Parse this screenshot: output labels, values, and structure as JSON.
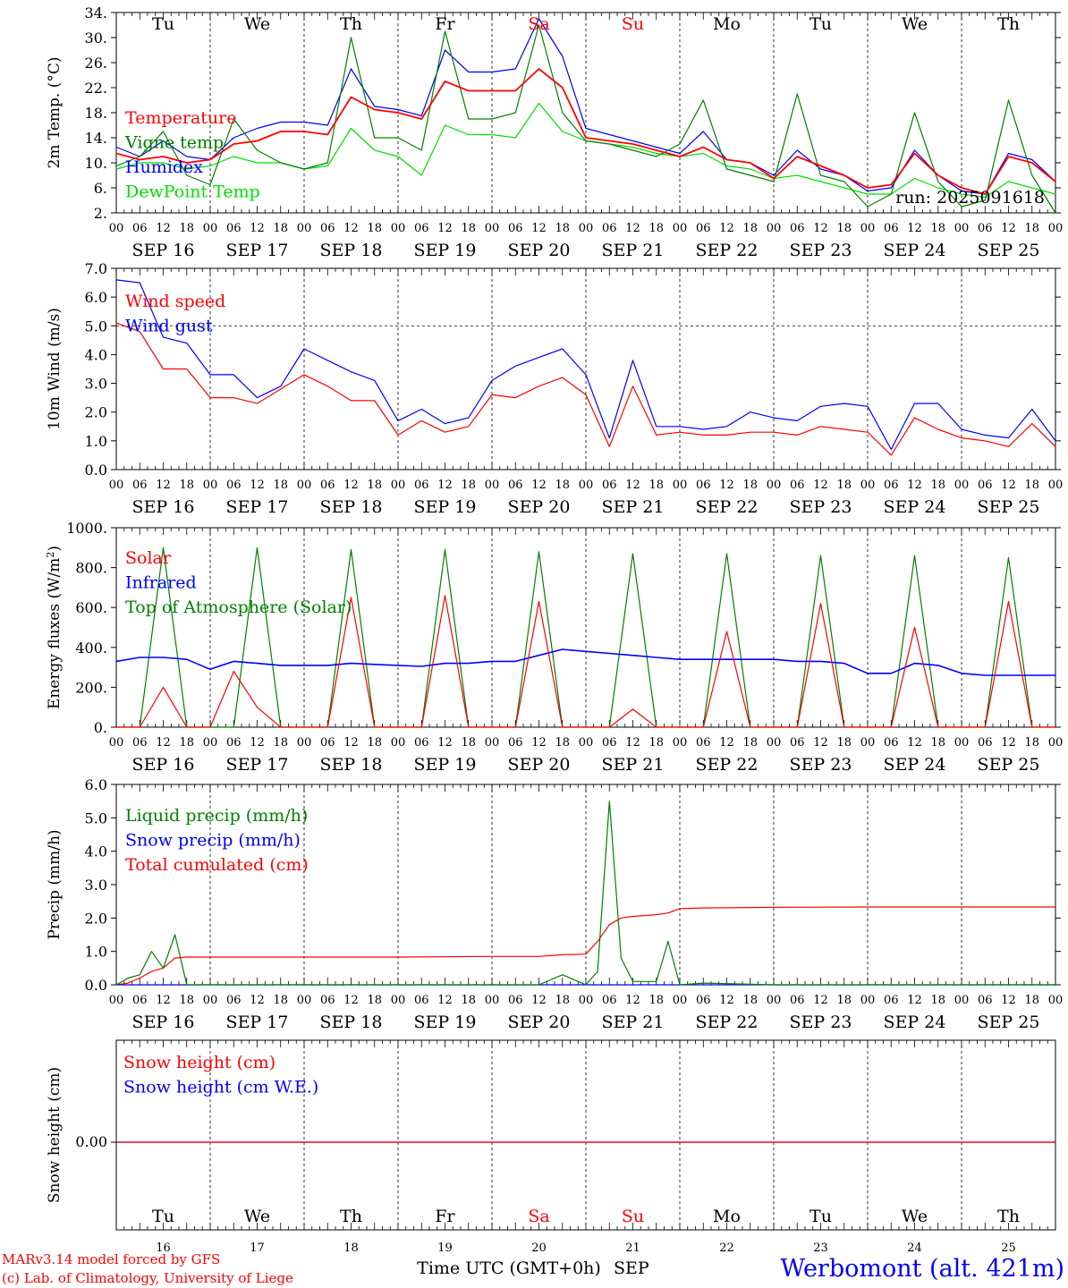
{
  "chart_data": [
    {
      "type": "line",
      "ylabel": "2m Temp. (°C)",
      "ylim": [
        2,
        34
      ],
      "yticks": [
        "2.",
        "6.",
        "10.",
        "14.",
        "18.",
        "22.",
        "26.",
        "30.",
        "34."
      ],
      "day_labels": [
        "Tu",
        "We",
        "Th",
        "Fr",
        "Sa",
        "Su",
        "Mo",
        "Tu",
        "We",
        "Th"
      ],
      "annotation": "run: 2025091618",
      "legend": [
        "Temperature",
        "Vigne temp",
        "Humidex",
        "DewPoint Temp"
      ],
      "x_hours": [
        0,
        6,
        12,
        18,
        24,
        30,
        36,
        42,
        48,
        54,
        60,
        66,
        72,
        78,
        84,
        90,
        96,
        102,
        108,
        114,
        120,
        126,
        132,
        138,
        144,
        150,
        156,
        162,
        168,
        174,
        180,
        186,
        192,
        198,
        204,
        210,
        216,
        222,
        228,
        234,
        240
      ],
      "series": [
        {
          "name": "Temperature",
          "color": "#ff0000",
          "values": [
            11.5,
            10.5,
            11,
            10,
            10.5,
            13,
            13.5,
            15,
            15,
            14.5,
            20.5,
            18.5,
            18,
            17,
            23,
            21.5,
            21.5,
            21.5,
            25,
            22,
            14,
            13.5,
            13,
            12,
            11,
            12.5,
            10.5,
            10,
            7.5,
            11,
            9.5,
            8,
            6,
            6.5,
            11.5,
            8,
            6,
            5,
            11,
            10,
            7
          ]
        },
        {
          "name": "Vigne temp",
          "color": "#008000",
          "values": [
            9.5,
            11,
            15,
            8,
            6.5,
            17,
            12,
            10,
            9,
            10,
            30,
            14,
            14,
            12,
            31,
            17,
            17,
            18,
            32,
            18,
            13.5,
            13,
            12,
            11,
            13,
            20,
            9,
            8,
            7,
            21,
            8,
            7,
            3,
            5,
            18,
            7,
            3,
            4,
            20,
            8,
            2
          ]
        },
        {
          "name": "Humidex",
          "color": "#0000ff",
          "values": [
            12.5,
            11,
            13.5,
            11,
            10.5,
            14,
            15.5,
            16.5,
            16.5,
            16,
            25,
            19,
            18.5,
            17.5,
            28,
            24.5,
            24.5,
            25,
            33,
            27,
            15.5,
            14.5,
            13.5,
            12.5,
            11.5,
            15,
            10.5,
            10,
            8,
            12,
            9,
            8,
            5.5,
            6,
            12,
            8,
            5.5,
            5,
            11.5,
            10.5,
            7
          ]
        },
        {
          "name": "DewPoint Temp",
          "color": "#00e000",
          "values": [
            9,
            10,
            10,
            9,
            9.5,
            11,
            10,
            10,
            9,
            9.5,
            15.5,
            12,
            11,
            8,
            16,
            14.5,
            14.5,
            14,
            19.5,
            15,
            13.5,
            13,
            12.5,
            11.5,
            11,
            11.5,
            9.5,
            9,
            7.5,
            8,
            7,
            6,
            5,
            5,
            7.5,
            6,
            5,
            4.5,
            7,
            6,
            5
          ]
        }
      ]
    },
    {
      "type": "line",
      "ylabel": "10m Wind (m/s)",
      "ylim": [
        0,
        7
      ],
      "yticks": [
        "0.0",
        "1.0",
        "2.0",
        "3.0",
        "4.0",
        "5.0",
        "6.0",
        "7.0"
      ],
      "legend": [
        "Wind speed",
        "Wind gust"
      ],
      "x_hours": [
        0,
        6,
        12,
        18,
        24,
        30,
        36,
        42,
        48,
        54,
        60,
        66,
        72,
        78,
        84,
        90,
        96,
        102,
        108,
        114,
        120,
        126,
        132,
        138,
        144,
        150,
        156,
        162,
        168,
        174,
        180,
        186,
        192,
        198,
        204,
        210,
        216,
        222,
        228,
        234,
        240
      ],
      "series": [
        {
          "name": "Wind speed",
          "color": "#ff0000",
          "values": [
            5.1,
            4.8,
            3.5,
            3.5,
            2.5,
            2.5,
            2.3,
            2.8,
            3.3,
            2.9,
            2.4,
            2.4,
            1.2,
            1.7,
            1.3,
            1.5,
            2.6,
            2.5,
            2.9,
            3.2,
            2.6,
            0.8,
            2.9,
            1.2,
            1.3,
            1.2,
            1.2,
            1.3,
            1.3,
            1.2,
            1.5,
            1.4,
            1.3,
            0.5,
            1.8,
            1.4,
            1.1,
            1.0,
            0.8,
            1.6,
            0.8
          ]
        },
        {
          "name": "Wind gust",
          "color": "#0000ff",
          "values": [
            6.6,
            6.5,
            4.6,
            4.4,
            3.3,
            3.3,
            2.5,
            2.9,
            4.2,
            3.8,
            3.4,
            3.1,
            1.7,
            2.1,
            1.6,
            1.8,
            3.1,
            3.6,
            3.9,
            4.2,
            3.3,
            1.1,
            3.8,
            1.5,
            1.5,
            1.4,
            1.5,
            2.0,
            1.8,
            1.7,
            2.2,
            2.3,
            2.2,
            0.7,
            2.3,
            2.3,
            1.4,
            1.2,
            1.1,
            2.1,
            1.0
          ]
        }
      ]
    },
    {
      "type": "line",
      "ylabel": "Energy fluxes (W/m²)",
      "ylim": [
        0,
        1000
      ],
      "yticks": [
        "0.",
        "200.",
        "400.",
        "600.",
        "800.",
        "1000."
      ],
      "legend": [
        "Solar",
        "Infrared",
        "Top of Atmosphere (Solar)"
      ],
      "x_hours": [
        0,
        6,
        12,
        18,
        24,
        30,
        36,
        42,
        48,
        54,
        60,
        66,
        72,
        78,
        84,
        90,
        96,
        102,
        108,
        114,
        120,
        126,
        132,
        138,
        144,
        150,
        156,
        162,
        168,
        174,
        180,
        186,
        192,
        198,
        204,
        210,
        216,
        222,
        228,
        234,
        240
      ],
      "series": [
        {
          "name": "Solar",
          "color": "#ff0000",
          "values": [
            0,
            0,
            200,
            0,
            0,
            280,
            100,
            0,
            0,
            0,
            650,
            0,
            0,
            0,
            660,
            0,
            0,
            0,
            630,
            0,
            0,
            0,
            90,
            0,
            0,
            0,
            480,
            0,
            0,
            0,
            620,
            0,
            0,
            0,
            500,
            0,
            0,
            0,
            630,
            0,
            0
          ]
        },
        {
          "name": "Infrared",
          "color": "#0000ff",
          "values": [
            330,
            350,
            350,
            340,
            290,
            330,
            320,
            310,
            310,
            310,
            320,
            315,
            310,
            305,
            320,
            320,
            330,
            330,
            360,
            390,
            380,
            370,
            360,
            350,
            340,
            340,
            340,
            340,
            340,
            330,
            330,
            320,
            270,
            270,
            320,
            310,
            270,
            260,
            260,
            260,
            260
          ]
        },
        {
          "name": "Top of Atmosphere (Solar)",
          "color": "#008000",
          "values": [
            0,
            0,
            900,
            0,
            0,
            0,
            900,
            0,
            0,
            0,
            890,
            0,
            0,
            0,
            890,
            0,
            0,
            0,
            880,
            0,
            0,
            0,
            870,
            0,
            0,
            0,
            870,
            0,
            0,
            0,
            860,
            0,
            0,
            0,
            860,
            0,
            0,
            0,
            850,
            0,
            0
          ]
        }
      ]
    },
    {
      "type": "line",
      "ylabel": "Precip (mm/h)",
      "ylim": [
        0,
        6
      ],
      "yticks": [
        "0.0",
        "1.0",
        "2.0",
        "3.0",
        "4.0",
        "5.0",
        "6.0"
      ],
      "legend": [
        "Liquid precip (mm/h)",
        "Snow precip (mm/h)",
        "Total cumulated (cm)"
      ],
      "x_hours": [
        0,
        3,
        6,
        9,
        12,
        15,
        18,
        24,
        48,
        72,
        96,
        108,
        114,
        120,
        123,
        126,
        129,
        132,
        138,
        141,
        144,
        150,
        168,
        192,
        216,
        240
      ],
      "series": [
        {
          "name": "Liquid precip (mm/h)",
          "color": "#008000",
          "values": [
            0,
            0.2,
            0.3,
            1.0,
            0.5,
            1.5,
            0,
            0,
            0,
            0,
            0,
            0,
            0.3,
            0,
            0.4,
            5.5,
            0.8,
            0.1,
            0.1,
            1.3,
            0,
            0.05,
            0,
            0,
            0,
            0
          ]
        },
        {
          "name": "Snow precip (mm/h)",
          "color": "#0000ff",
          "values": [
            0,
            0,
            0,
            0,
            0,
            0,
            0,
            0,
            0,
            0,
            0,
            0,
            0,
            0,
            0,
            0,
            0,
            0,
            0,
            0,
            0,
            0,
            0,
            0,
            0,
            0
          ]
        },
        {
          "name": "Total cumulated (cm)",
          "color": "#ff0000",
          "values": [
            0,
            0.05,
            0.2,
            0.4,
            0.5,
            0.8,
            0.83,
            0.83,
            0.83,
            0.83,
            0.85,
            0.85,
            0.9,
            0.92,
            1.3,
            1.8,
            2.0,
            2.05,
            2.1,
            2.15,
            2.28,
            2.3,
            2.32,
            2.33,
            2.33,
            2.33
          ]
        }
      ]
    },
    {
      "type": "line",
      "ylabel": "Snow height (cm)",
      "yticks": [
        "0.00"
      ],
      "legend": [
        "Snow height (cm)",
        "Snow height (cm W.E.)"
      ],
      "x_hours": [
        0,
        240
      ],
      "series": [
        {
          "name": "Snow height (cm)",
          "color": "#ff0000",
          "values": [
            0,
            0
          ]
        },
        {
          "name": "Snow height (cm W.E.)",
          "color": "#0000ff",
          "values": [
            0,
            0
          ]
        }
      ]
    }
  ],
  "hour_ticks": [
    "00",
    "06",
    "12",
    "18"
  ],
  "date_labels": [
    "SEP 16",
    "SEP 17",
    "SEP 18",
    "SEP 19",
    "SEP 20",
    "SEP 21",
    "SEP 22",
    "SEP 23",
    "SEP 24",
    "SEP 25"
  ],
  "bottom_day_labels": [
    "Tu",
    "We",
    "Th",
    "Fr",
    "Sa",
    "Su",
    "Mo",
    "Tu",
    "We",
    "Th"
  ],
  "bottom_day_numbers": [
    "16",
    "17",
    "18",
    "19",
    "20",
    "21",
    "22",
    "23",
    "24",
    "25"
  ],
  "weekend_indices": [
    4,
    5
  ],
  "colors": {
    "weekday": "#000000",
    "weekend": "#ff0000",
    "station": "#0000ff",
    "credit": "#ff0000"
  },
  "footer": {
    "credit_line1": "MARv3.14 model forced by GFS",
    "credit_line2": "(c) Lab. of Climatology, University of Liege",
    "xlabel": "Time UTC (GMT+0h)",
    "month": "SEP",
    "station": "Werbomont (alt. 421m)"
  }
}
